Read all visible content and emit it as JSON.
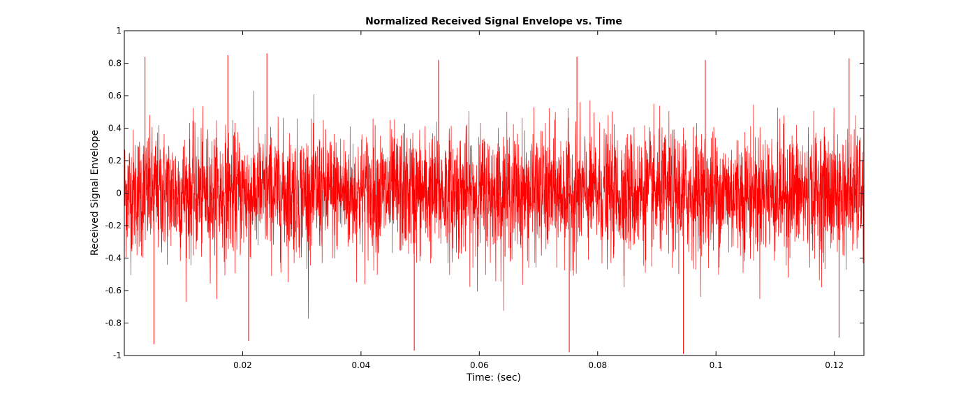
{
  "chart_data": {
    "type": "line",
    "title": "Normalized Received Signal Envelope vs. Time",
    "xlabel": "Time: (sec)",
    "ylabel": "Received Signal Envelope",
    "xlim": [
      0,
      0.125
    ],
    "ylim": [
      -1,
      1
    ],
    "xticks": [
      0.02,
      0.04,
      0.06,
      0.08,
      0.1,
      0.12
    ],
    "xtick_labels": [
      "0.02",
      "0.04",
      "0.06",
      "0.08",
      "0.1",
      "0.12"
    ],
    "yticks": [
      -1,
      -0.8,
      -0.6,
      -0.4,
      -0.2,
      0,
      0.2,
      0.4,
      0.6,
      0.8,
      1
    ],
    "ytick_labels": [
      "-1",
      "-0.8",
      "-0.6",
      "-0.4",
      "-0.2",
      "0",
      "0.2",
      "0.4",
      "0.6",
      "0.8",
      "1"
    ],
    "grid": false,
    "series": [
      {
        "color": "#ff0000",
        "description": "dense noise-like signal",
        "typical_amplitude": 0.35,
        "peak_values": [
          {
            "x": 0.0035,
            "y": 0.84
          },
          {
            "x": 0.0175,
            "y": 0.85
          },
          {
            "x": 0.0241,
            "y": 0.86
          },
          {
            "x": 0.0531,
            "y": 0.82
          },
          {
            "x": 0.0765,
            "y": 0.84
          },
          {
            "x": 0.0982,
            "y": 0.82
          },
          {
            "x": 0.1225,
            "y": 0.83
          },
          {
            "x": 0.005,
            "y": -0.93
          },
          {
            "x": 0.021,
            "y": -0.91
          },
          {
            "x": 0.049,
            "y": -0.97
          },
          {
            "x": 0.0752,
            "y": -0.98
          },
          {
            "x": 0.0945,
            "y": -0.99
          },
          {
            "x": 0.1208,
            "y": -0.89
          }
        ]
      }
    ]
  }
}
